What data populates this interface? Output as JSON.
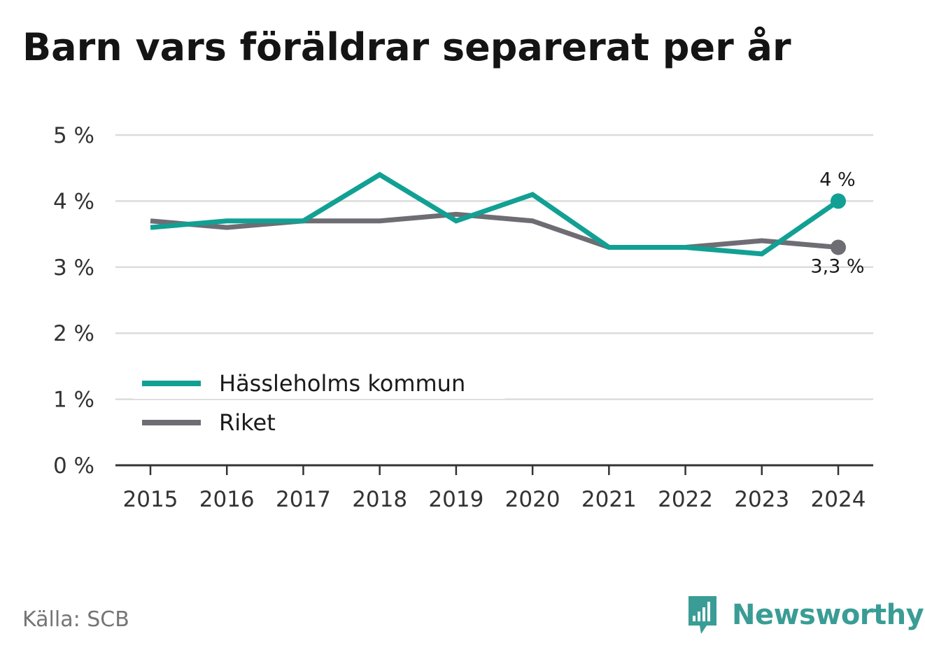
{
  "title": "Barn vars föräldrar separerat per år",
  "source": "Källa: SCB",
  "brand": {
    "name": "Newsworthy",
    "icon": "newsworthy-logo-icon"
  },
  "colors": {
    "primary": "#12a094",
    "secondary": "#6e6d74",
    "grid": "#dcdcdc",
    "axis": "#333333",
    "brand": "#3a9d95"
  },
  "chart_data": {
    "type": "line",
    "x": [
      "2015",
      "2016",
      "2017",
      "2018",
      "2019",
      "2020",
      "2021",
      "2022",
      "2023",
      "2024"
    ],
    "ylim": [
      0,
      5
    ],
    "yticks": [
      {
        "value": 0,
        "label": "0 %"
      },
      {
        "value": 1,
        "label": "1 %"
      },
      {
        "value": 2,
        "label": "2 %"
      },
      {
        "value": 3,
        "label": "3 %"
      },
      {
        "value": 4,
        "label": "4 %"
      },
      {
        "value": 5,
        "label": "5 %"
      }
    ],
    "grid": true,
    "legend": "bottom-left",
    "series": [
      {
        "name": "Hässleholms kommun",
        "color": "#12a094",
        "values": [
          3.6,
          3.7,
          3.7,
          4.4,
          3.7,
          4.1,
          3.3,
          3.3,
          3.2,
          4.0
        ],
        "end_label": "4 %",
        "end_label_pos": "above"
      },
      {
        "name": "Riket",
        "color": "#6e6d74",
        "values": [
          3.7,
          3.6,
          3.7,
          3.7,
          3.8,
          3.7,
          3.3,
          3.3,
          3.4,
          3.3
        ],
        "end_label": "3,3 %",
        "end_label_pos": "below"
      }
    ]
  }
}
